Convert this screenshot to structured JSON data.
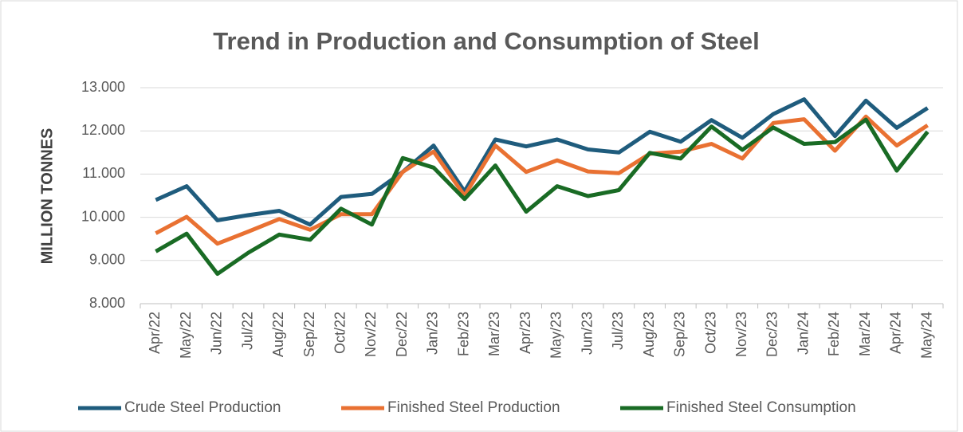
{
  "chart_data": {
    "type": "line",
    "title": "Trend in Production and Consumption of Steel",
    "y_label": "MILLION TONNES",
    "categories": [
      "Apr/22",
      "May/22",
      "Jun/22",
      "Jul/22",
      "Aug/22",
      "Sep/22",
      "Oct/22",
      "Nov/22",
      "Dec/22",
      "Jan/23",
      "Feb/23",
      "Mar/23",
      "Apr/23",
      "May/23",
      "Jun/23",
      "Jul/23",
      "Aug/23",
      "Sep/23",
      "Oct/23",
      "Nov/23",
      "Dec/23",
      "Jan/24",
      "Feb/24",
      "Mar/24",
      "Apr/24",
      "May/24"
    ],
    "series": [
      {
        "name": "Crude Steel Production",
        "color": "#1f5c7d",
        "values": [
          10.4,
          10.72,
          9.93,
          10.05,
          10.15,
          9.83,
          10.47,
          10.54,
          11.05,
          11.66,
          10.6,
          11.8,
          11.64,
          11.8,
          11.57,
          11.5,
          11.98,
          11.75,
          12.25,
          11.84,
          12.39,
          12.73,
          11.88,
          12.7,
          12.07,
          12.53
        ]
      },
      {
        "name": "Finished Steel Production",
        "color": "#e97132",
        "values": [
          9.63,
          10.01,
          9.39,
          9.67,
          9.96,
          9.71,
          10.07,
          10.07,
          11.05,
          11.52,
          10.5,
          11.66,
          11.05,
          11.32,
          11.06,
          11.02,
          11.47,
          11.52,
          11.7,
          11.36,
          12.18,
          12.27,
          11.54,
          12.33,
          11.66,
          12.13
        ]
      },
      {
        "name": "Finished Steel Consumption",
        "color": "#196b24",
        "values": [
          9.21,
          9.62,
          8.69,
          9.18,
          9.6,
          9.48,
          10.2,
          9.83,
          11.37,
          11.15,
          10.42,
          11.2,
          10.13,
          10.72,
          10.49,
          10.63,
          11.49,
          11.36,
          12.1,
          11.56,
          12.08,
          11.7,
          11.74,
          12.26,
          11.08,
          11.98
        ]
      }
    ],
    "ylim": [
      8,
      13
    ],
    "yticks": [
      {
        "value": 8,
        "label": "8.000"
      },
      {
        "value": 9,
        "label": "9.000"
      },
      {
        "value": 10,
        "label": "10.000"
      },
      {
        "value": 11,
        "label": "11.000"
      },
      {
        "value": 12,
        "label": "12.000"
      },
      {
        "value": 13,
        "label": "13.000"
      }
    ],
    "grid": true,
    "legend": "bottom"
  }
}
